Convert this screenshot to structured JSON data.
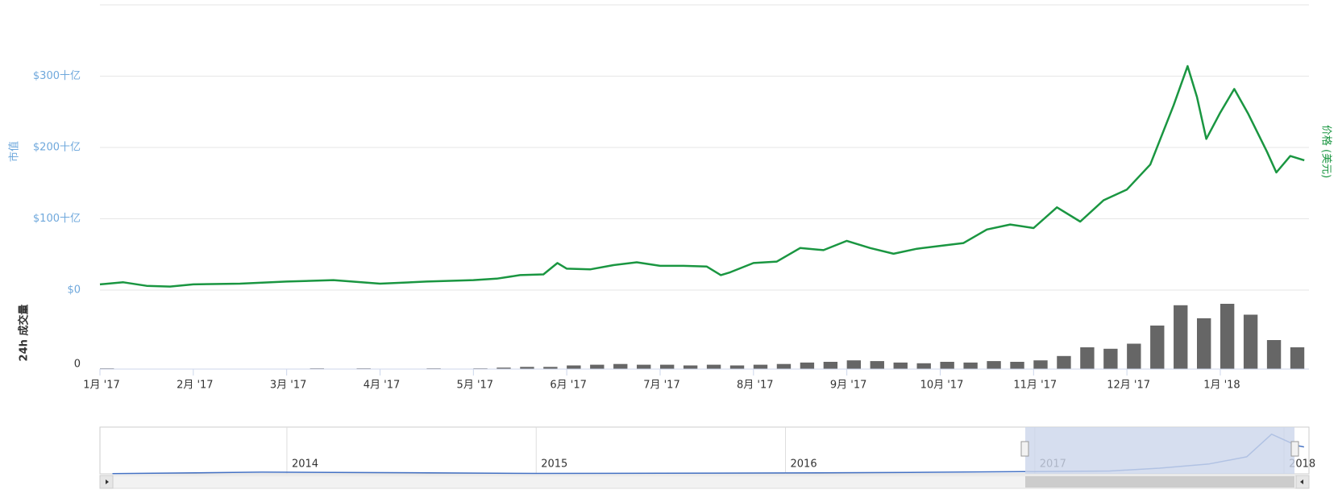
{
  "chart_data": [
    {
      "type": "line",
      "ylabel": "市值",
      "y2label": "价格 (美元)",
      "x": [
        0,
        0.25,
        0.5,
        0.75,
        1,
        1.5,
        2,
        2.5,
        3,
        3.5,
        4,
        4.25,
        4.5,
        4.75,
        4.9,
        5,
        5.25,
        5.5,
        5.75,
        6,
        6.25,
        6.5,
        6.65,
        6.75,
        7,
        7.25,
        7.5,
        7.75,
        8,
        8.25,
        8.5,
        8.75,
        9,
        9.25,
        9.5,
        9.75,
        10,
        10.25,
        10.5,
        10.75,
        11,
        11.25,
        11.5,
        11.65,
        11.75,
        11.85,
        12,
        12.15,
        12.3,
        12.5,
        12.6,
        12.75,
        12.9
      ],
      "series": [
        {
          "color": "#1a9641",
          "values": [
            8,
            11,
            6,
            5,
            8,
            9,
            12,
            14,
            9,
            12,
            14,
            16,
            21,
            22,
            38,
            30,
            29,
            35,
            39,
            34,
            34,
            33,
            21,
            25,
            38,
            40,
            59,
            56,
            69,
            59,
            51,
            58,
            62,
            66,
            85,
            92,
            87,
            116,
            96,
            126,
            141,
            176,
            259,
            314,
            271,
            212,
            249,
            282,
            247,
            194,
            165,
            188,
            182
          ]
        }
      ],
      "xlim": [
        0,
        12.95
      ],
      "ylim": [
        0,
        400
      ],
      "yticks": [
        {
          "value": 0,
          "label": "$0"
        },
        {
          "value": 100,
          "label": "$100十亿"
        },
        {
          "value": 200,
          "label": "$200十亿"
        },
        {
          "value": 300,
          "label": "$300十亿"
        }
      ]
    },
    {
      "type": "bar",
      "ylabel": "24h 成交量",
      "x": [
        0,
        0.25,
        0.5,
        0.75,
        1,
        1.25,
        1.5,
        1.75,
        2,
        2.25,
        2.5,
        2.75,
        3,
        3.25,
        3.5,
        3.75,
        4,
        4.25,
        4.5,
        4.75,
        5,
        5.25,
        5.5,
        5.75,
        6,
        6.25,
        6.5,
        6.75,
        7,
        7.25,
        7.5,
        7.75,
        8,
        8.25,
        8.5,
        8.75,
        9,
        9.25,
        9.5,
        9.75,
        10,
        10.25,
        10.5,
        10.75,
        11,
        11.25,
        11.5,
        11.75,
        12,
        12.25,
        12.5,
        12.75
      ],
      "series": [
        {
          "color": "#666666",
          "values": [
            1,
            0,
            0,
            0,
            0,
            0,
            0,
            0,
            0,
            1,
            0,
            1,
            0,
            0,
            1,
            0,
            1,
            2,
            3,
            3,
            5,
            6,
            7,
            6,
            6,
            5,
            6,
            5,
            6,
            7,
            9,
            10,
            12,
            11,
            9,
            8,
            10,
            9,
            11,
            10,
            12,
            18,
            30,
            28,
            35,
            60,
            88,
            70,
            90,
            75,
            40,
            30
          ]
        }
      ],
      "xlim": [
        0,
        12.95
      ],
      "ylim": [
        0,
        100
      ],
      "yticks": [
        0
      ],
      "xticks": [
        {
          "value": 0,
          "label": "1月 '17"
        },
        {
          "value": 1,
          "label": "2月 '17"
        },
        {
          "value": 2,
          "label": "3月 '17"
        },
        {
          "value": 3,
          "label": "4月 '17"
        },
        {
          "value": 4,
          "label": "5月 '17"
        },
        {
          "value": 5,
          "label": "6月 '17"
        },
        {
          "value": 6,
          "label": "7月 '17"
        },
        {
          "value": 7,
          "label": "8月 '17"
        },
        {
          "value": 8,
          "label": "9月 '17"
        },
        {
          "value": 9,
          "label": "10月 '17"
        },
        {
          "value": 10,
          "label": "11月 '17"
        },
        {
          "value": 11,
          "label": "12月 '17"
        },
        {
          "value": 12,
          "label": "1月 '18"
        }
      ]
    },
    {
      "type": "line",
      "x": [
        2013.3,
        2013.9,
        2014.5,
        2015,
        2015.5,
        2016,
        2016.5,
        2017,
        2017.3,
        2017.5,
        2017.7,
        2017.85,
        2017.95,
        2018,
        2018.05,
        2018.08
      ],
      "series": [
        {
          "color": "#4572c4",
          "values": [
            1.5,
            12,
            8,
            3,
            4,
            6,
            10,
            16,
            20,
            40,
            70,
            120,
            280,
            240,
            200,
            190
          ]
        }
      ],
      "xlim": [
        2013.25,
        2018.1
      ],
      "ylim": [
        0,
        330
      ],
      "xticks": [
        2014,
        2015,
        2016,
        2017,
        2018
      ]
    }
  ]
}
